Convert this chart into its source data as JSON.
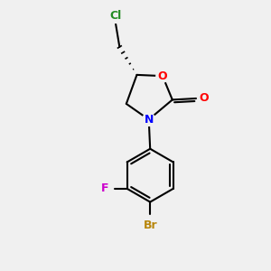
{
  "background_color": "#f0f0f0",
  "atom_colors": {
    "C": "#000000",
    "O": "#ff0000",
    "N": "#0000ff",
    "Br": "#b8860b",
    "F": "#cc00cc",
    "Cl": "#228B22"
  },
  "bond_color": "#000000",
  "bond_width": 1.5,
  "figsize": [
    3.0,
    3.0
  ],
  "dpi": 100
}
